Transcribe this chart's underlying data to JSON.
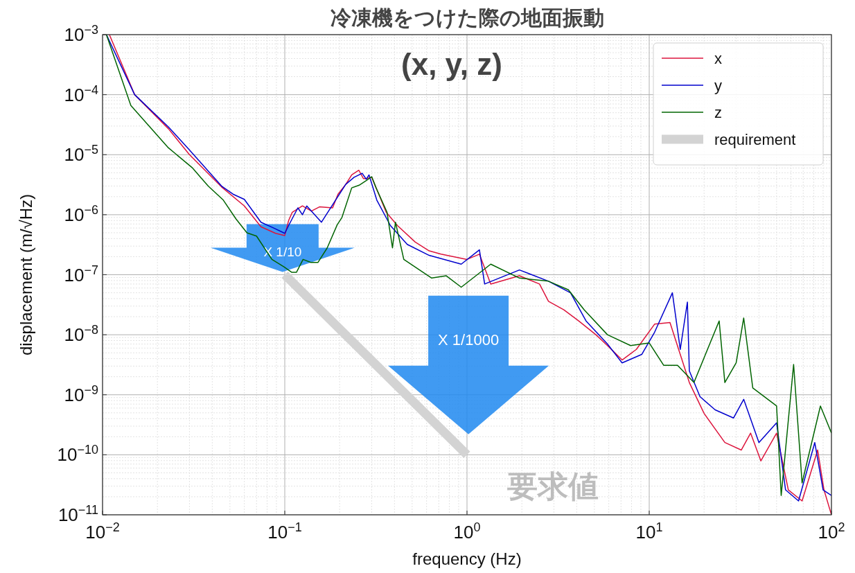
{
  "chart_data": {
    "type": "line",
    "title": "冷凍機をつけた際の地面振動",
    "subtitle": "(x, y, z)",
    "xlabel": "frequency (Hz)",
    "ylabel": "displacement (m/√Hz)",
    "log": "xy",
    "grid": true,
    "legend": "top right",
    "xlim": [
      0.01,
      100
    ],
    "ylim": [
      1e-11,
      0.001
    ],
    "xticks": [
      {
        "value": 0.01,
        "label": "10$^{−2}$"
      },
      {
        "value": 0.1,
        "label": "10$^{−1}$"
      },
      {
        "value": 1,
        "label": "10$^{0}$"
      },
      {
        "value": 10,
        "label": "10$^{1}$"
      },
      {
        "value": 100,
        "label": "10$^{2}$"
      }
    ],
    "yticks": [
      {
        "value": 1e-11,
        "label": "10$^{−11}$"
      },
      {
        "value": 1e-10,
        "label": "10$^{−10}$"
      },
      {
        "value": 1e-09,
        "label": "10$^{−9}$"
      },
      {
        "value": 1e-08,
        "label": "10$^{−8}$"
      },
      {
        "value": 1e-07,
        "label": "10$^{−7}$"
      },
      {
        "value": 1e-06,
        "label": "10$^{−6}$"
      },
      {
        "value": 1e-05,
        "label": "10$^{−5}$"
      },
      {
        "value": 0.0001,
        "label": "10$^{−4}$"
      },
      {
        "value": 0.001,
        "label": "10$^{−3}$"
      }
    ],
    "series": [
      {
        "name": "x",
        "color": "#dc143c",
        "x": [
          0.0109,
          0.015,
          0.023,
          0.03,
          0.045,
          0.06,
          0.074,
          0.089,
          0.1,
          0.105,
          0.11,
          0.125,
          0.14,
          0.155,
          0.183,
          0.196,
          0.216,
          0.233,
          0.255,
          0.27,
          0.28,
          0.3,
          0.33,
          0.36,
          0.415,
          0.52,
          0.62,
          0.72,
          1.0,
          1.17,
          1.35,
          1.94,
          2.5,
          2.8,
          3.4,
          4.1,
          5.1,
          5.9,
          7.1,
          8.5,
          10.7,
          13,
          14.8,
          16.6,
          20,
          26,
          32,
          36,
          41,
          50,
          58,
          69,
          84,
          91,
          100
        ],
        "values": [
          0.001,
          0.0001,
          2.7e-05,
          1e-05,
          2.9e-06,
          1.4e-06,
          6.3e-07,
          4.9e-07,
          4.5e-07,
          8e-07,
          1.1e-06,
          1.4e-06,
          1.15e-06,
          1.35e-06,
          1.3e-06,
          2.2e-06,
          3.2e-06,
          4.6e-06,
          5.5e-06,
          4e-06,
          4e-06,
          4.2e-06,
          2.1e-06,
          1.1e-06,
          6.6e-07,
          3.5e-07,
          2.5e-07,
          2.2e-07,
          1.8e-07,
          2.2e-07,
          7e-08,
          9.6e-08,
          7e-08,
          3.6e-08,
          2.6e-08,
          1.7e-08,
          1e-08,
          6.6e-09,
          3.8e-09,
          5.7e-09,
          1.5e-08,
          1.6e-08,
          4.7e-09,
          1.6e-09,
          4.9e-10,
          1.6e-10,
          1.2e-10,
          2.3e-10,
          7.9e-11,
          2.3e-10,
          2.6e-11,
          1.7e-11,
          1.2e-10,
          2.6e-11,
          1e-11
        ]
      },
      {
        "name": "y",
        "color": "#0000cd",
        "x": [
          0.0105,
          0.015,
          0.023,
          0.03,
          0.045,
          0.052,
          0.06,
          0.074,
          0.087,
          0.1,
          0.105,
          0.118,
          0.125,
          0.132,
          0.159,
          0.19,
          0.216,
          0.24,
          0.266,
          0.28,
          0.29,
          0.32,
          0.38,
          0.47,
          0.62,
          0.93,
          1.17,
          1.25,
          1.94,
          2.8,
          3.7,
          4.5,
          5.9,
          7.1,
          9.1,
          10.7,
          13.4,
          14.8,
          16.2,
          16.6,
          19,
          23,
          29,
          33,
          40,
          50,
          56,
          66,
          81,
          90,
          100
        ],
        "values": [
          0.001,
          0.0001,
          2.9e-05,
          1.2e-05,
          3e-06,
          2.2e-06,
          1.8e-06,
          7.5e-07,
          6e-07,
          4.9e-07,
          6.6e-07,
          1.3e-06,
          1e-06,
          1.4e-06,
          7.5e-07,
          1.75e-06,
          3.2e-06,
          4.2e-06,
          4.9e-06,
          3.9e-06,
          4.6e-06,
          1.75e-06,
          6.6e-07,
          3.2e-07,
          2.1e-07,
          1.5e-07,
          2.6e-07,
          7e-08,
          1.2e-07,
          7.8e-08,
          5e-08,
          1.7e-08,
          7e-09,
          3.4e-09,
          4.7e-09,
          1.1e-08,
          5e-08,
          5.7e-09,
          3.5e-08,
          2.5e-09,
          9.3e-10,
          5.6e-10,
          4.1e-10,
          8.4e-10,
          1.6e-10,
          3.4e-10,
          2.6e-11,
          1.7e-11,
          1.6e-10,
          2.6e-11,
          2.1e-11
        ]
      },
      {
        "name": "z",
        "color": "#006400",
        "x": [
          0.0105,
          0.0143,
          0.023,
          0.031,
          0.038,
          0.046,
          0.054,
          0.062,
          0.07,
          0.085,
          0.099,
          0.109,
          0.116,
          0.126,
          0.139,
          0.152,
          0.171,
          0.194,
          0.206,
          0.233,
          0.256,
          0.28,
          0.3,
          0.317,
          0.364,
          0.39,
          0.405,
          0.45,
          0.64,
          0.77,
          0.93,
          1.35,
          1.94,
          2.8,
          3.6,
          4.4,
          5.9,
          7.9,
          10,
          12,
          14.3,
          17.6,
          24.2,
          26,
          30,
          33,
          37,
          50,
          53,
          62,
          69,
          87,
          100
        ],
        "values": [
          0.001,
          6.6e-05,
          1.3e-05,
          6.1e-06,
          3e-06,
          1.75e-06,
          8.5e-07,
          5e-07,
          4.4e-07,
          1.8e-07,
          1.35e-07,
          1.1e-07,
          1.1e-07,
          1.8e-07,
          1.6e-07,
          1.6e-07,
          2.8e-07,
          6.8e-07,
          9e-07,
          2.8e-06,
          3.1e-06,
          3.7e-06,
          4.3e-06,
          2.8e-06,
          1.1e-06,
          2.8e-07,
          7.5e-07,
          1.8e-07,
          8.8e-08,
          9.6e-08,
          6.2e-08,
          1.5e-07,
          8.8e-08,
          7.8e-08,
          5.6e-08,
          2.6e-08,
          1e-08,
          6.6e-09,
          7.3e-09,
          3.1e-09,
          3.1e-09,
          1.6e-09,
          1.7e-08,
          1.6e-09,
          3.4e-09,
          1.9e-08,
          1.3e-09,
          6.5e-10,
          2.1e-11,
          3.2e-09,
          3.4e-11,
          6.5e-10,
          2.3e-10
        ]
      },
      {
        "name": "requirement",
        "color": "#d3d3d3",
        "x": [
          0.1,
          1
        ],
        "values": [
          1e-07,
          1e-10
        ]
      }
    ],
    "annotations": [
      "X 1/10",
      "X 1/1000",
      "要求値"
    ]
  }
}
